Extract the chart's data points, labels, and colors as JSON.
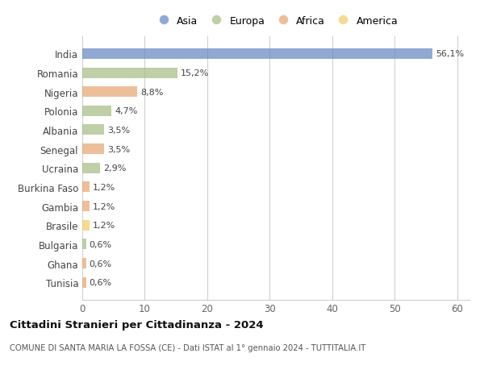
{
  "countries": [
    "India",
    "Romania",
    "Nigeria",
    "Polonia",
    "Albania",
    "Senegal",
    "Ucraina",
    "Burkina Faso",
    "Gambia",
    "Brasile",
    "Bulgaria",
    "Ghana",
    "Tunisia"
  ],
  "values": [
    56.1,
    15.2,
    8.8,
    4.7,
    3.5,
    3.5,
    2.9,
    1.2,
    1.2,
    1.2,
    0.6,
    0.6,
    0.6
  ],
  "labels": [
    "56,1%",
    "15,2%",
    "8,8%",
    "4,7%",
    "3,5%",
    "3,5%",
    "2,9%",
    "1,2%",
    "1,2%",
    "1,2%",
    "0,6%",
    "0,6%",
    "0,6%"
  ],
  "continents": [
    "Asia",
    "Europa",
    "Africa",
    "Europa",
    "Europa",
    "Africa",
    "Europa",
    "Africa",
    "Africa",
    "America",
    "Europa",
    "Africa",
    "Africa"
  ],
  "colors": {
    "Asia": "#6b8dc4",
    "Europa": "#aabf8a",
    "Africa": "#e8a878",
    "America": "#f0d070"
  },
  "legend_order": [
    "Asia",
    "Europa",
    "Africa",
    "America"
  ],
  "title": "Cittadini Stranieri per Cittadinanza - 2024",
  "subtitle": "COMUNE DI SANTA MARIA LA FOSSA (CE) - Dati ISTAT al 1° gennaio 2024 - TUTTITALIA.IT",
  "xlim": [
    0,
    62
  ],
  "xticks": [
    0,
    10,
    20,
    30,
    40,
    50,
    60
  ],
  "background_color": "#ffffff",
  "grid_color": "#d0d0d0",
  "bar_alpha": 0.75,
  "bar_height": 0.55
}
